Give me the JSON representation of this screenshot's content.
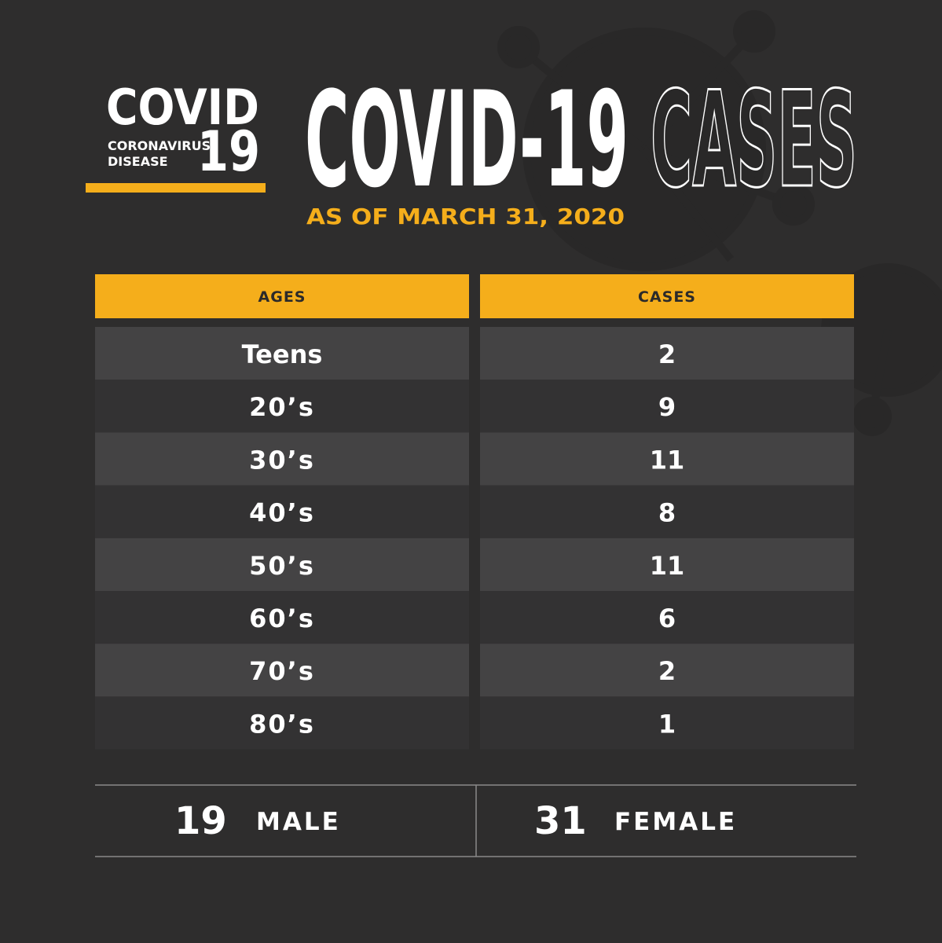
{
  "logo": {
    "title": "COVID",
    "line1": "CORONAVIRUS",
    "line2": "DISEASE",
    "number": "19"
  },
  "header": {
    "title": "COVID-19",
    "title_outline": "CASES",
    "subtitle": "AS OF MARCH 31, 2020"
  },
  "table": {
    "columns": [
      "AGES",
      "CASES"
    ],
    "rows": [
      [
        "Teens",
        "2"
      ],
      [
        "20’s",
        "9"
      ],
      [
        "30’s",
        "11"
      ],
      [
        "40’s",
        "8"
      ],
      [
        "50’s",
        "11"
      ],
      [
        "60’s",
        "6"
      ],
      [
        "70’s",
        "2"
      ],
      [
        "80’s",
        "1"
      ]
    ]
  },
  "summary": [
    {
      "value": "19",
      "label": "MALE"
    },
    {
      "value": "31",
      "label": "FEMALE"
    }
  ]
}
